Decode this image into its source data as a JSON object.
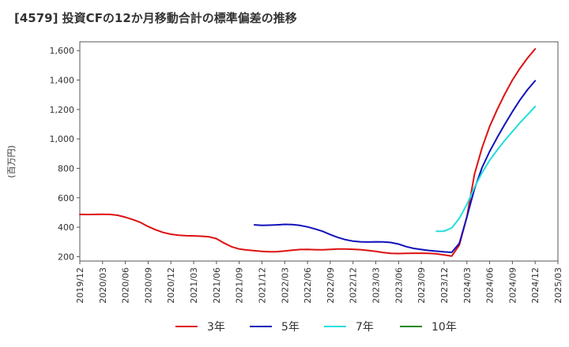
{
  "chart_data": {
    "type": "line",
    "title": "[4579]  投資CFの12か月移動合計の標準偏差の推移",
    "ylabel": "(百万円)",
    "xlabel": "",
    "ylim": [
      170,
      1660
    ],
    "yticks": [
      200,
      400,
      600,
      800,
      1000,
      1200,
      1400,
      1600
    ],
    "ytick_labels": [
      "200",
      "400",
      "600",
      "800",
      "1,000",
      "1,200",
      "1,400",
      "1,600"
    ],
    "xticks": [
      "2019/12",
      "2020/03",
      "2020/06",
      "2020/09",
      "2020/12",
      "2021/03",
      "2021/06",
      "2021/09",
      "2021/12",
      "2022/03",
      "2022/06",
      "2022/09",
      "2022/12",
      "2023/03",
      "2023/06",
      "2023/09",
      "2023/12",
      "2024/03",
      "2024/06",
      "2024/09",
      "2024/12",
      "2025/03"
    ],
    "grid": true,
    "legend_position": "bottom",
    "series": [
      {
        "name": "3年",
        "color": "#dd1111",
        "points": [
          [
            "2019/12",
            487
          ],
          [
            "2020/01",
            486
          ],
          [
            "2020/02",
            487
          ],
          [
            "2020/03",
            488
          ],
          [
            "2020/04",
            487
          ],
          [
            "2020/05",
            481
          ],
          [
            "2020/06",
            468
          ],
          [
            "2020/07",
            452
          ],
          [
            "2020/08",
            432
          ],
          [
            "2020/09",
            405
          ],
          [
            "2020/10",
            382
          ],
          [
            "2020/11",
            364
          ],
          [
            "2020/12",
            352
          ],
          [
            "2021/01",
            345
          ],
          [
            "2021/02",
            342
          ],
          [
            "2021/03",
            341
          ],
          [
            "2021/04",
            339
          ],
          [
            "2021/05",
            335
          ],
          [
            "2021/06",
            322
          ],
          [
            "2021/07",
            292
          ],
          [
            "2021/08",
            267
          ],
          [
            "2021/09",
            252
          ],
          [
            "2021/10",
            245
          ],
          [
            "2021/11",
            240
          ],
          [
            "2021/12",
            236
          ],
          [
            "2022/01",
            233
          ],
          [
            "2022/02",
            234
          ],
          [
            "2022/03",
            238
          ],
          [
            "2022/04",
            244
          ],
          [
            "2022/05",
            248
          ],
          [
            "2022/06",
            249
          ],
          [
            "2022/07",
            247
          ],
          [
            "2022/08",
            246
          ],
          [
            "2022/09",
            249
          ],
          [
            "2022/10",
            252
          ],
          [
            "2022/11",
            252
          ],
          [
            "2022/12",
            250
          ],
          [
            "2023/01",
            247
          ],
          [
            "2023/02",
            242
          ],
          [
            "2023/03",
            236
          ],
          [
            "2023/04",
            228
          ],
          [
            "2023/05",
            222
          ],
          [
            "2023/06",
            221
          ],
          [
            "2023/07",
            222
          ],
          [
            "2023/08",
            223
          ],
          [
            "2023/09",
            223
          ],
          [
            "2023/10",
            222
          ],
          [
            "2023/11",
            219
          ],
          [
            "2023/12",
            212
          ],
          [
            "2024/01",
            204
          ],
          [
            "2024/02",
            278
          ],
          [
            "2024/03",
            470
          ],
          [
            "2024/04",
            760
          ],
          [
            "2024/05",
            940
          ],
          [
            "2024/06",
            1085
          ],
          [
            "2024/07",
            1200
          ],
          [
            "2024/08",
            1305
          ],
          [
            "2024/09",
            1400
          ],
          [
            "2024/10",
            1480
          ],
          [
            "2024/11",
            1550
          ],
          [
            "2024/12",
            1612
          ]
        ]
      },
      {
        "name": "5年",
        "color": "#1111bb",
        "points": [
          [
            "2021/11",
            416
          ],
          [
            "2021/12",
            413
          ],
          [
            "2022/01",
            414
          ],
          [
            "2022/02",
            416
          ],
          [
            "2022/03",
            419
          ],
          [
            "2022/04",
            418
          ],
          [
            "2022/05",
            412
          ],
          [
            "2022/06",
            402
          ],
          [
            "2022/07",
            388
          ],
          [
            "2022/08",
            372
          ],
          [
            "2022/09",
            350
          ],
          [
            "2022/10",
            330
          ],
          [
            "2022/11",
            315
          ],
          [
            "2022/12",
            305
          ],
          [
            "2023/01",
            301
          ],
          [
            "2023/02",
            299
          ],
          [
            "2023/03",
            301
          ],
          [
            "2023/04",
            300
          ],
          [
            "2023/05",
            296
          ],
          [
            "2023/06",
            285
          ],
          [
            "2023/07",
            268
          ],
          [
            "2023/08",
            256
          ],
          [
            "2023/09",
            248
          ],
          [
            "2023/10",
            242
          ],
          [
            "2023/11",
            237
          ],
          [
            "2023/12",
            232
          ],
          [
            "2024/01",
            229
          ],
          [
            "2024/02",
            290
          ],
          [
            "2024/03",
            470
          ],
          [
            "2024/04",
            660
          ],
          [
            "2024/05",
            805
          ],
          [
            "2024/06",
            915
          ],
          [
            "2024/07",
            1010
          ],
          [
            "2024/08",
            1100
          ],
          [
            "2024/09",
            1185
          ],
          [
            "2024/10",
            1265
          ],
          [
            "2024/11",
            1335
          ],
          [
            "2024/12",
            1395
          ]
        ]
      },
      {
        "name": "7年",
        "color": "#22dddd",
        "points": [
          [
            "2023/11",
            372
          ],
          [
            "2023/12",
            373
          ],
          [
            "2024/01",
            395
          ],
          [
            "2024/02",
            460
          ],
          [
            "2024/03",
            555
          ],
          [
            "2024/04",
            670
          ],
          [
            "2024/05",
            770
          ],
          [
            "2024/06",
            855
          ],
          [
            "2024/07",
            925
          ],
          [
            "2024/08",
            990
          ],
          [
            "2024/09",
            1050
          ],
          [
            "2024/10",
            1110
          ],
          [
            "2024/11",
            1165
          ],
          [
            "2024/12",
            1220
          ]
        ]
      },
      {
        "name": "10年",
        "color": "#228822",
        "points": []
      }
    ]
  }
}
